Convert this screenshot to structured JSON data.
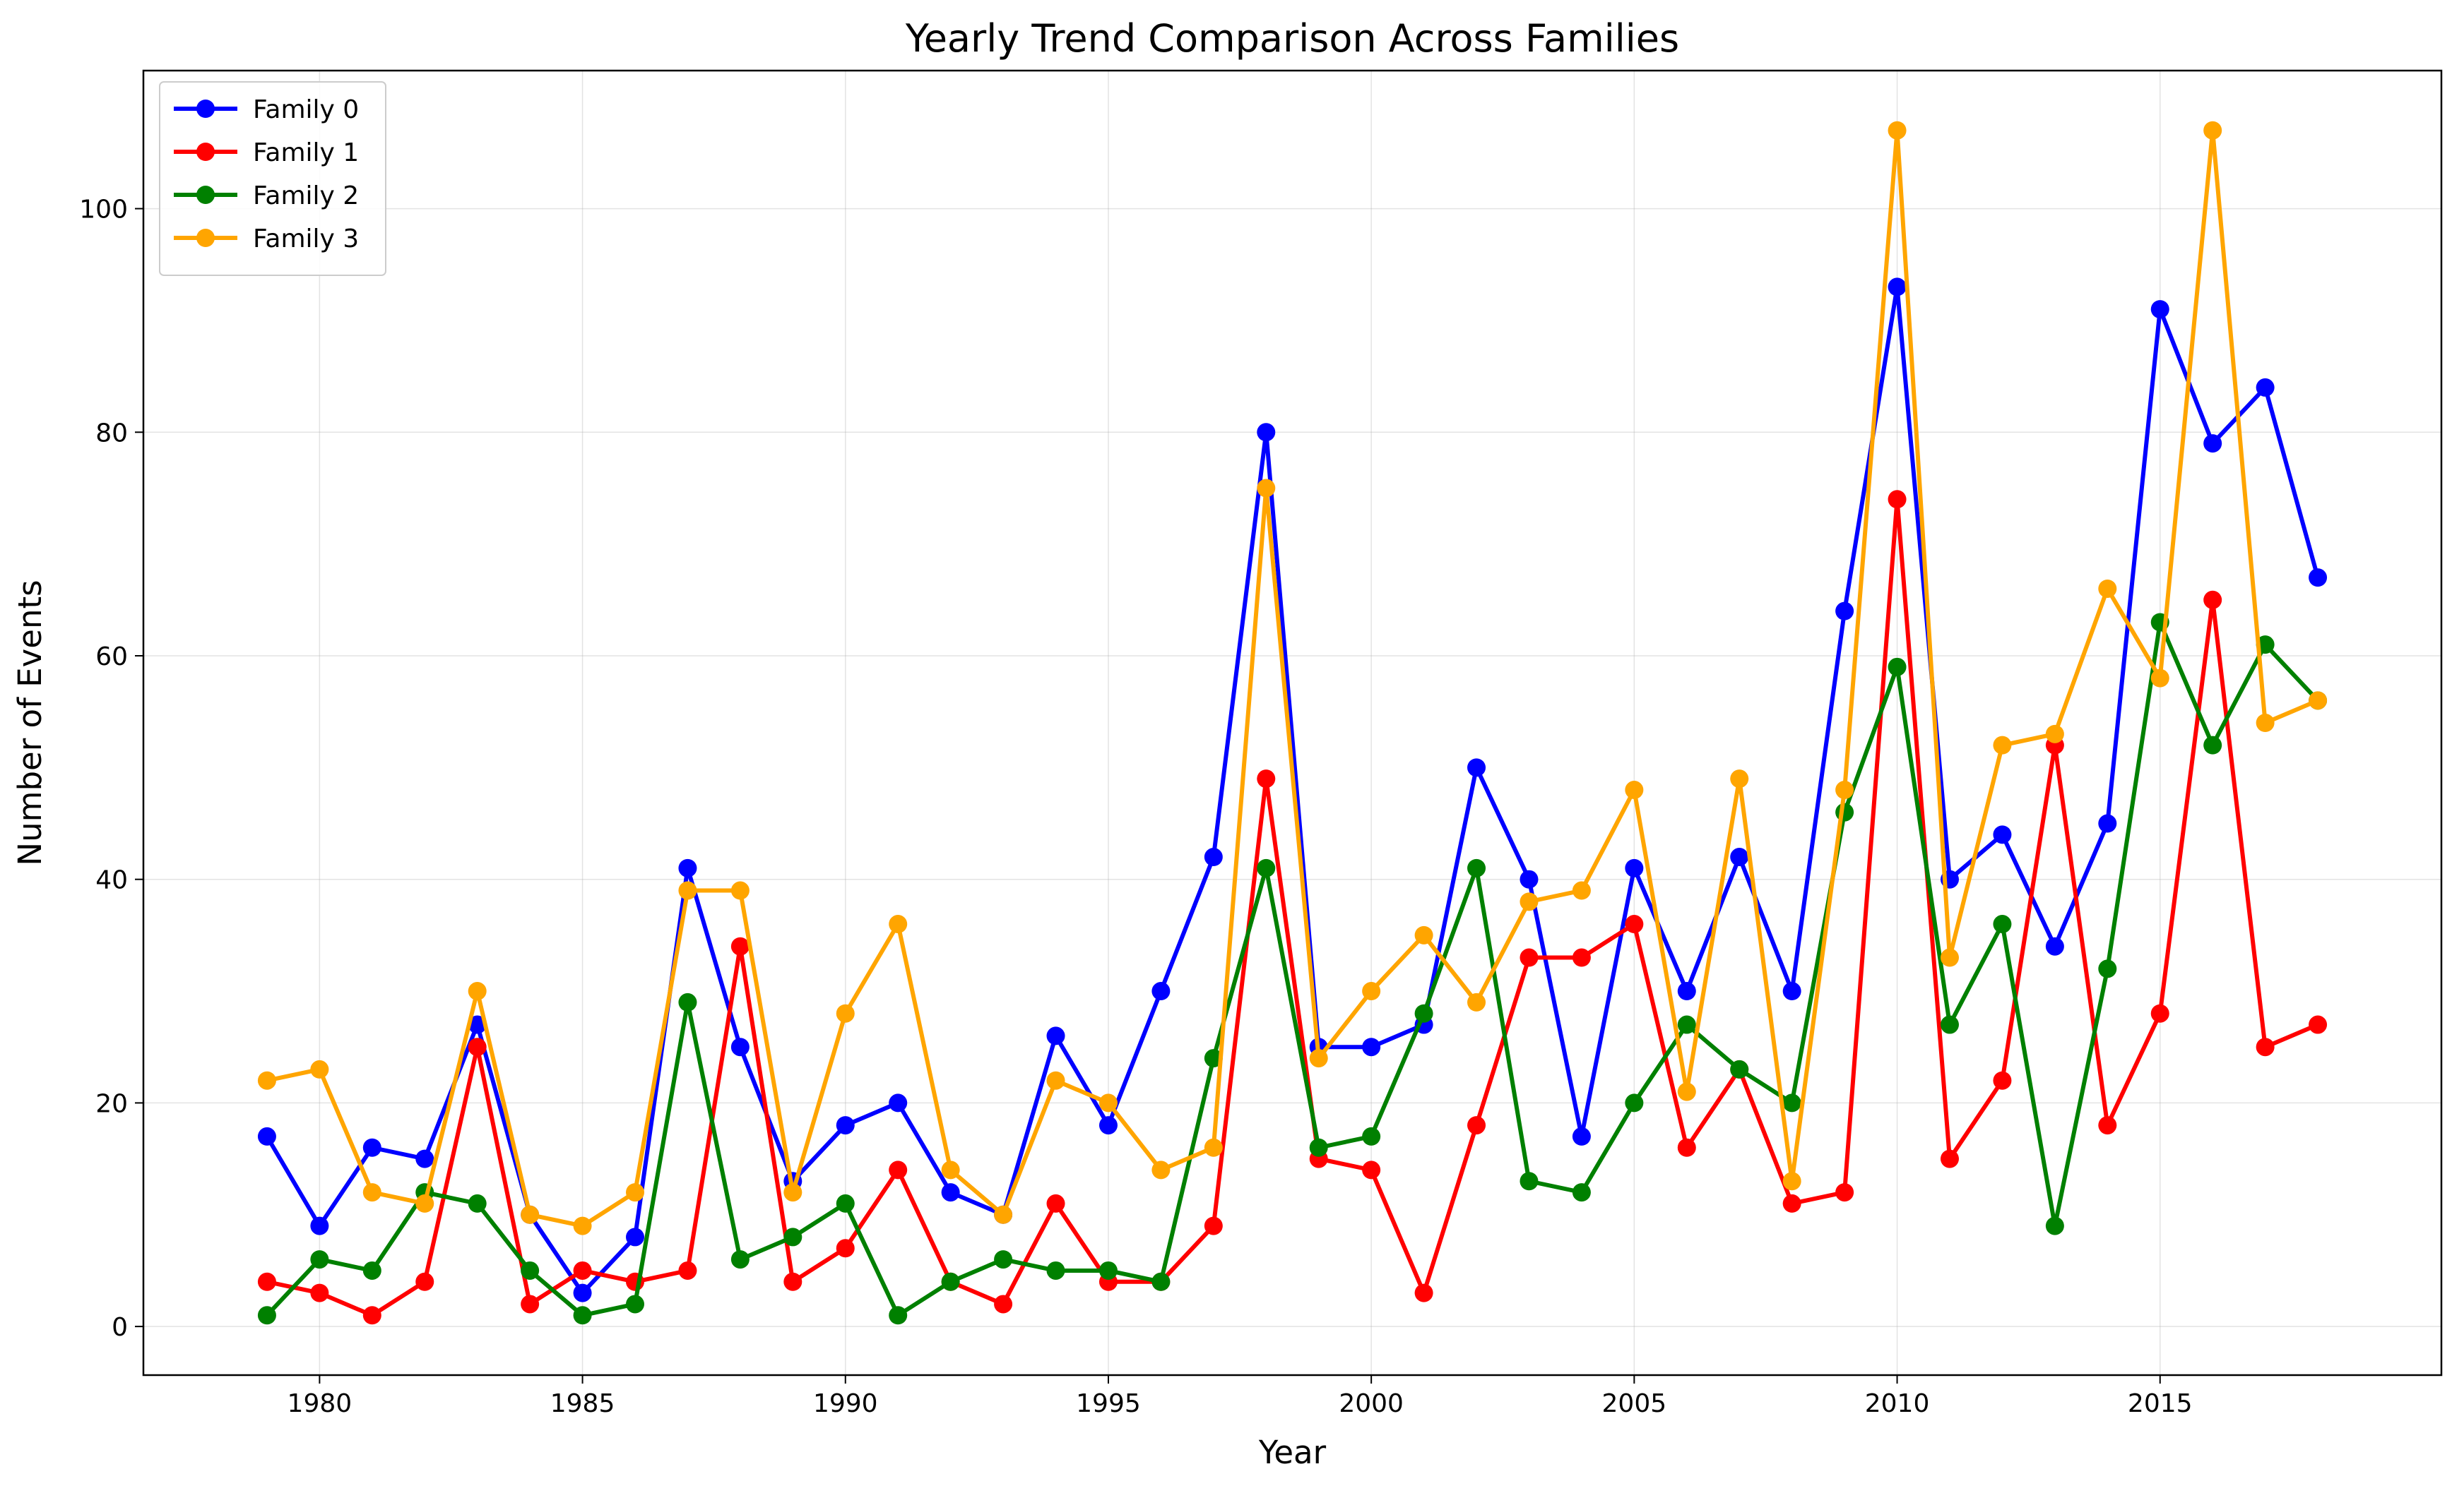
{
  "chart_data": {
    "type": "line",
    "title": "Yearly Trend Comparison Across Families",
    "xlabel": "Year",
    "ylabel": "Number of Events",
    "x": [
      1979,
      1980,
      1981,
      1982,
      1983,
      1984,
      1985,
      1986,
      1987,
      1988,
      1989,
      1990,
      1991,
      1992,
      1993,
      1994,
      1995,
      1996,
      1997,
      1998,
      1999,
      2000,
      2001,
      2002,
      2003,
      2004,
      2005,
      2006,
      2007,
      2008,
      2009,
      2010,
      2011,
      2012,
      2013,
      2014,
      2015,
      2016,
      2017,
      2018
    ],
    "xlim": [
      1976.65,
      2020.35
    ],
    "ylim": [
      -4.35,
      112.35
    ],
    "xticks": [
      1980,
      1985,
      1990,
      1995,
      2000,
      2005,
      2010,
      2015
    ],
    "yticks": [
      0,
      20,
      40,
      60,
      80,
      100
    ],
    "grid": true,
    "legend_position": "top-left",
    "series": [
      {
        "name": "Family 0",
        "color": "#0000ff",
        "values": [
          17,
          9,
          16,
          15,
          27,
          10,
          3,
          8,
          41,
          25,
          13,
          18,
          20,
          12,
          10,
          26,
          18,
          30,
          42,
          80,
          25,
          25,
          27,
          50,
          40,
          17,
          41,
          30,
          42,
          30,
          64,
          93,
          40,
          44,
          34,
          45,
          91,
          79,
          84,
          67
        ]
      },
      {
        "name": "Family 1",
        "color": "#ff0000",
        "values": [
          4,
          3,
          1,
          4,
          25,
          2,
          5,
          4,
          5,
          34,
          4,
          7,
          14,
          4,
          2,
          11,
          4,
          4,
          9,
          49,
          15,
          14,
          3,
          18,
          33,
          33,
          36,
          16,
          23,
          11,
          12,
          74,
          15,
          22,
          52,
          18,
          28,
          65,
          25,
          27
        ]
      },
      {
        "name": "Family 2",
        "color": "#008000",
        "values": [
          1,
          6,
          5,
          12,
          11,
          5,
          1,
          2,
          29,
          6,
          8,
          11,
          1,
          4,
          6,
          5,
          5,
          4,
          24,
          41,
          16,
          17,
          28,
          41,
          13,
          12,
          20,
          27,
          23,
          20,
          46,
          59,
          27,
          36,
          9,
          32,
          63,
          52,
          61,
          56
        ]
      },
      {
        "name": "Family 3",
        "color": "#ffa500",
        "values": [
          22,
          23,
          12,
          11,
          30,
          10,
          9,
          12,
          39,
          39,
          12,
          28,
          36,
          14,
          10,
          22,
          20,
          14,
          16,
          75,
          24,
          30,
          35,
          29,
          38,
          39,
          48,
          21,
          49,
          13,
          48,
          107,
          33,
          52,
          53,
          66,
          58,
          107,
          54,
          56
        ]
      }
    ]
  }
}
